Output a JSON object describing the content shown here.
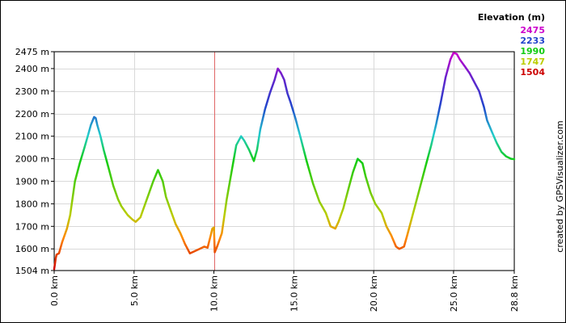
{
  "chart_data": {
    "type": "line",
    "title": "",
    "xlabel": "",
    "ylabel": "",
    "x_unit": "km",
    "y_unit": "m",
    "xlim": [
      0,
      28.8
    ],
    "ylim": [
      1504,
      2475
    ],
    "x_ticks": [
      {
        "value": 0,
        "label": "0.0 km"
      },
      {
        "value": 5,
        "label": "5.0 km"
      },
      {
        "value": 10,
        "label": "10.0 km"
      },
      {
        "value": 15,
        "label": "15.0 km"
      },
      {
        "value": 20,
        "label": "20.0 km"
      },
      {
        "value": 25,
        "label": "25.0 km"
      },
      {
        "value": 28.8,
        "label": "28.8 km"
      }
    ],
    "y_ticks": [
      {
        "value": 1504,
        "label": "1504 m"
      },
      {
        "value": 1600,
        "label": "1600 m"
      },
      {
        "value": 1700,
        "label": "1700 m"
      },
      {
        "value": 1800,
        "label": "1800 m"
      },
      {
        "value": 1900,
        "label": "1900 m"
      },
      {
        "value": 2000,
        "label": "2000 m"
      },
      {
        "value": 2100,
        "label": "2100 m"
      },
      {
        "value": 2200,
        "label": "2200 m"
      },
      {
        "value": 2300,
        "label": "2300 m"
      },
      {
        "value": 2400,
        "label": "2400 m"
      },
      {
        "value": 2475,
        "label": "2475 m"
      }
    ],
    "grid": true,
    "marker_x": 10.0,
    "marker_color": "#e06666",
    "legend": {
      "title": "Elevation (m)",
      "placement": "top-right",
      "entries": [
        {
          "label": "2475",
          "color": "#cc00cc"
        },
        {
          "label": "2233",
          "color": "#2244cc"
        },
        {
          "label": "1990",
          "color": "#11cc11"
        },
        {
          "label": "1747",
          "color": "#bbcc00"
        },
        {
          "label": "1504",
          "color": "#cc0000"
        }
      ]
    },
    "series": [
      {
        "x": [
          0,
          0.1,
          0.15,
          0.3,
          0.5,
          0.8,
          1.0,
          1.3,
          1.6,
          1.9,
          2.1,
          2.3,
          2.5,
          2.6,
          2.7,
          2.9,
          3.1,
          3.4,
          3.7,
          4.0,
          4.2,
          4.4,
          4.6,
          4.9,
          5.1,
          5.4,
          5.6,
          5.9,
          6.2,
          6.5,
          6.8,
          7.0,
          7.3,
          7.6,
          7.9,
          8.2,
          8.5,
          8.8,
          9.1,
          9.4,
          9.6,
          9.8,
          9.9,
          10.0,
          10.05,
          10.2,
          10.5,
          10.8,
          11.1,
          11.4,
          11.7,
          11.9,
          12.2,
          12.5,
          12.7,
          12.9,
          13.2,
          13.5,
          13.8,
          14.0,
          14.2,
          14.4,
          14.6,
          14.8,
          15.1,
          15.4,
          15.8,
          16.2,
          16.6,
          17.0,
          17.3,
          17.6,
          17.8,
          18.1,
          18.4,
          18.7,
          19.0,
          19.3,
          19.5,
          19.8,
          20.1,
          20.5,
          20.8,
          21.1,
          21.4,
          21.6,
          21.9,
          22.1,
          22.4,
          22.7,
          23.0,
          23.3,
          23.6,
          23.9,
          24.2,
          24.5,
          24.8,
          25.0,
          25.2,
          25.4,
          25.7,
          26.0,
          26.3,
          26.6,
          26.9,
          27.1,
          27.4,
          27.7,
          28.0,
          28.3,
          28.6,
          28.8
        ],
        "values": [
          1510,
          1560,
          1575,
          1580,
          1630,
          1690,
          1750,
          1900,
          1980,
          2050,
          2100,
          2150,
          2185,
          2180,
          2150,
          2100,
          2040,
          1960,
          1880,
          1820,
          1790,
          1770,
          1750,
          1730,
          1720,
          1740,
          1780,
          1840,
          1900,
          1950,
          1900,
          1830,
          1770,
          1710,
          1670,
          1620,
          1580,
          1590,
          1600,
          1610,
          1605,
          1660,
          1690,
          1695,
          1585,
          1610,
          1670,
          1820,
          1940,
          2060,
          2100,
          2080,
          2040,
          1990,
          2040,
          2130,
          2220,
          2290,
          2350,
          2400,
          2380,
          2350,
          2290,
          2250,
          2180,
          2100,
          1990,
          1890,
          1810,
          1760,
          1700,
          1690,
          1720,
          1780,
          1860,
          1940,
          2000,
          1980,
          1920,
          1850,
          1800,
          1760,
          1700,
          1660,
          1610,
          1600,
          1610,
          1660,
          1740,
          1820,
          1900,
          1980,
          2060,
          2150,
          2250,
          2360,
          2440,
          2470,
          2465,
          2440,
          2410,
          2380,
          2340,
          2300,
          2230,
          2170,
          2120,
          2070,
          2030,
          2010,
          2000,
          1998
        ]
      }
    ]
  },
  "credit": "created by GPSVisualizer.com"
}
